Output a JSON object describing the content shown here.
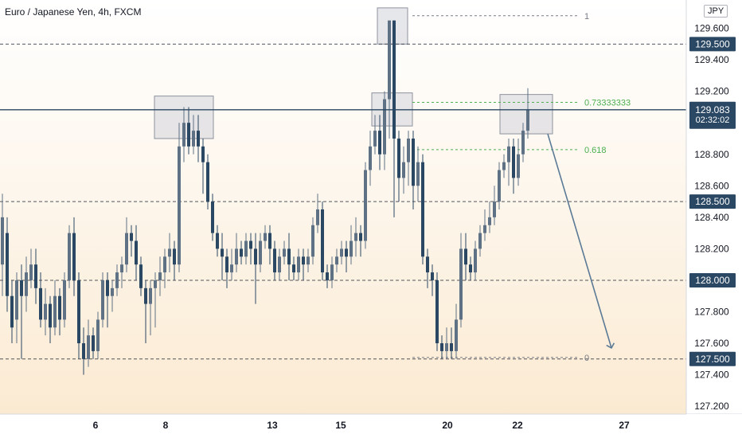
{
  "chart_data": {
    "type": "candlestick",
    "title": "Euro / Japanese Yen, 4h, FXCM",
    "currency": "JPY",
    "ylim": [
      127.15,
      129.78
    ],
    "xlim": [
      0,
      900
    ],
    "y_ticks": [
      127.2,
      127.4,
      127.6,
      127.8,
      128.2,
      128.4,
      128.6,
      128.8,
      129.2,
      129.4,
      129.6
    ],
    "x_ticks": [
      {
        "label": "6",
        "x": 120
      },
      {
        "label": "8",
        "x": 208
      },
      {
        "label": "13",
        "x": 342
      },
      {
        "label": "15",
        "x": 428
      },
      {
        "label": "20",
        "x": 562
      },
      {
        "label": "22",
        "x": 650
      },
      {
        "label": "27",
        "x": 784
      }
    ],
    "current_price": {
      "value": 129.083,
      "label": "129.083",
      "countdown": "02:32:02"
    },
    "horizontal_levels": [
      {
        "value": 129.5,
        "label": "129.500"
      },
      {
        "value": 128.5,
        "label": "128.500"
      },
      {
        "value": 128.0,
        "label": "128.000"
      },
      {
        "value": 127.5,
        "label": "127.500"
      }
    ],
    "fib_levels": [
      {
        "value": 129.68,
        "label": "1",
        "color": "#787b86"
      },
      {
        "value": 129.13,
        "label": "0.73333333",
        "color": "#4caf50"
      },
      {
        "value": 128.83,
        "label": "0.618",
        "color": "#4caf50"
      },
      {
        "value": 127.51,
        "label": "0",
        "color": "#787b86"
      }
    ],
    "fib_range_x": [
      518,
      728
    ],
    "highlight_boxes": [
      {
        "x": [
          194,
          268
        ],
        "y": [
          128.9,
          129.17
        ]
      },
      {
        "x": [
          474,
          512
        ],
        "y": [
          129.5,
          129.73
        ]
      },
      {
        "x": [
          467,
          518
        ],
        "y": [
          128.98,
          129.19
        ]
      },
      {
        "x": [
          628,
          694
        ],
        "y": [
          128.93,
          129.18
        ]
      }
    ],
    "projection_arrow": {
      "from": [
        688,
        128.93
      ],
      "to": [
        768,
        127.57
      ]
    },
    "candles": [
      [
        3,
        128.1,
        128.4,
        128.55,
        127.9
      ],
      [
        9,
        128.3,
        127.9,
        128.4,
        127.8
      ],
      [
        15,
        127.9,
        127.7,
        128.0,
        127.6
      ],
      [
        21,
        127.75,
        128.0,
        128.05,
        127.6
      ],
      [
        27,
        128.0,
        127.9,
        128.1,
        127.5
      ],
      [
        33,
        127.9,
        128.05,
        128.15,
        127.8
      ],
      [
        39,
        128.0,
        128.1,
        128.2,
        127.95
      ],
      [
        45,
        128.1,
        127.95,
        128.2,
        127.85
      ],
      [
        51,
        127.95,
        127.75,
        128.05,
        127.7
      ],
      [
        57,
        127.75,
        127.85,
        127.95,
        127.65
      ],
      [
        63,
        127.85,
        127.7,
        127.9,
        127.6
      ],
      [
        69,
        127.7,
        127.9,
        128.0,
        127.65
      ],
      [
        75,
        127.9,
        127.75,
        127.95,
        127.65
      ],
      [
        81,
        127.75,
        128.0,
        128.05,
        127.7
      ],
      [
        87,
        128.0,
        128.3,
        128.35,
        127.95
      ],
      [
        93,
        128.3,
        128.0,
        128.4,
        127.9
      ],
      [
        99,
        128.0,
        127.6,
        128.05,
        127.5
      ],
      [
        105,
        127.6,
        127.5,
        127.7,
        127.4
      ],
      [
        111,
        127.5,
        127.65,
        127.75,
        127.45
      ],
      [
        117,
        127.65,
        127.55,
        127.7,
        127.5
      ],
      [
        123,
        127.55,
        127.75,
        127.8,
        127.5
      ],
      [
        129,
        127.75,
        128.0,
        128.05,
        127.7
      ],
      [
        135,
        128.0,
        127.9,
        128.05,
        127.7
      ],
      [
        141,
        127.9,
        127.95,
        128.0,
        127.8
      ],
      [
        147,
        127.95,
        128.05,
        128.1,
        127.9
      ],
      [
        153,
        128.05,
        128.1,
        128.15,
        127.95
      ],
      [
        159,
        128.1,
        128.3,
        128.4,
        128.05
      ],
      [
        165,
        128.3,
        128.25,
        128.35,
        128.15
      ],
      [
        171,
        128.25,
        128.1,
        128.35,
        128.0
      ],
      [
        177,
        128.1,
        127.95,
        128.15,
        127.9
      ],
      [
        183,
        127.95,
        127.85,
        128.0,
        127.6
      ],
      [
        189,
        127.85,
        127.95,
        128.0,
        127.65
      ],
      [
        195,
        127.95,
        128.0,
        128.05,
        127.7
      ],
      [
        201,
        128.0,
        128.05,
        128.15,
        127.9
      ],
      [
        207,
        128.05,
        128.15,
        128.2,
        127.95
      ],
      [
        213,
        128.15,
        128.2,
        128.3,
        128.05
      ],
      [
        219,
        128.2,
        128.1,
        128.25,
        128.0
      ],
      [
        225,
        128.1,
        128.85,
        129.0,
        128.05
      ],
      [
        231,
        128.85,
        129.0,
        129.1,
        128.75
      ],
      [
        237,
        129.0,
        128.85,
        129.1,
        128.8
      ],
      [
        243,
        128.85,
        128.95,
        129.05,
        128.8
      ],
      [
        249,
        128.95,
        128.85,
        129.05,
        128.75
      ],
      [
        255,
        128.85,
        128.75,
        128.9,
        128.55
      ],
      [
        261,
        128.75,
        128.5,
        128.8,
        128.45
      ],
      [
        267,
        128.5,
        128.3,
        128.55,
        128.25
      ],
      [
        273,
        128.3,
        128.2,
        128.35,
        128.15
      ],
      [
        279,
        128.2,
        128.15,
        128.3,
        128.0
      ],
      [
        285,
        128.15,
        128.05,
        128.2,
        127.95
      ],
      [
        291,
        128.05,
        128.1,
        128.2,
        128.0
      ],
      [
        297,
        128.1,
        128.2,
        128.3,
        128.05
      ],
      [
        303,
        128.2,
        128.15,
        128.25,
        128.1
      ],
      [
        309,
        128.15,
        128.25,
        128.3,
        128.1
      ],
      [
        315,
        128.25,
        128.2,
        128.3,
        128.1
      ],
      [
        321,
        128.2,
        128.1,
        128.3,
        127.85
      ],
      [
        327,
        128.1,
        128.25,
        128.3,
        128.05
      ],
      [
        333,
        128.25,
        128.3,
        128.35,
        128.2
      ],
      [
        339,
        128.3,
        128.2,
        128.35,
        128.1
      ],
      [
        345,
        128.2,
        128.05,
        128.25,
        128.0
      ],
      [
        351,
        128.05,
        128.15,
        128.2,
        128.0
      ],
      [
        357,
        128.15,
        128.2,
        128.25,
        128.1
      ],
      [
        363,
        128.2,
        128.1,
        128.3,
        128.0
      ],
      [
        369,
        128.1,
        128.05,
        128.15,
        128.0
      ],
      [
        375,
        128.05,
        128.15,
        128.2,
        128.0
      ],
      [
        381,
        128.15,
        128.1,
        128.2,
        128.0
      ],
      [
        387,
        128.1,
        128.15,
        128.2,
        128.05
      ],
      [
        393,
        128.15,
        128.35,
        128.4,
        128.1
      ],
      [
        399,
        128.35,
        128.45,
        128.55,
        128.3
      ],
      [
        405,
        128.45,
        128.05,
        128.5,
        128.0
      ],
      [
        411,
        128.05,
        128.0,
        128.1,
        127.95
      ],
      [
        417,
        128.0,
        128.1,
        128.15,
        127.95
      ],
      [
        423,
        128.1,
        128.15,
        128.2,
        128.05
      ],
      [
        429,
        128.15,
        128.2,
        128.25,
        128.1
      ],
      [
        435,
        128.2,
        128.15,
        128.25,
        128.05
      ],
      [
        441,
        128.15,
        128.25,
        128.35,
        128.1
      ],
      [
        447,
        128.25,
        128.3,
        128.4,
        128.15
      ],
      [
        453,
        128.3,
        128.25,
        128.35,
        128.15
      ],
      [
        459,
        128.25,
        128.7,
        128.75,
        128.2
      ],
      [
        465,
        128.7,
        128.85,
        128.95,
        128.6
      ],
      [
        471,
        128.85,
        128.95,
        129.05,
        128.8
      ],
      [
        477,
        128.95,
        128.8,
        129.05,
        128.7
      ],
      [
        483,
        128.8,
        129.15,
        129.2,
        128.7
      ],
      [
        489,
        129.15,
        129.65,
        129.65,
        128.9
      ],
      [
        495,
        129.65,
        128.9,
        129.65,
        128.4
      ],
      [
        501,
        128.9,
        128.65,
        128.95,
        128.5
      ],
      [
        507,
        128.65,
        128.75,
        128.85,
        128.55
      ],
      [
        513,
        128.75,
        128.9,
        128.95,
        128.6
      ],
      [
        519,
        128.9,
        128.6,
        128.95,
        128.45
      ],
      [
        525,
        128.6,
        128.75,
        128.85,
        128.5
      ],
      [
        531,
        128.75,
        128.15,
        128.8,
        128.1
      ],
      [
        537,
        128.15,
        128.05,
        128.2,
        127.95
      ],
      [
        543,
        128.05,
        128.0,
        128.1,
        127.9
      ],
      [
        549,
        128.0,
        127.6,
        128.05,
        127.55
      ],
      [
        555,
        127.6,
        127.55,
        127.65,
        127.5
      ],
      [
        561,
        127.55,
        127.6,
        127.7,
        127.5
      ],
      [
        567,
        127.6,
        127.55,
        127.7,
        127.5
      ],
      [
        573,
        127.55,
        127.75,
        127.85,
        127.5
      ],
      [
        579,
        127.75,
        128.2,
        128.3,
        127.7
      ],
      [
        585,
        128.2,
        128.1,
        128.3,
        128.0
      ],
      [
        591,
        128.1,
        128.05,
        128.15,
        128.0
      ],
      [
        597,
        128.05,
        128.2,
        128.25,
        128.0
      ],
      [
        603,
        128.2,
        128.3,
        128.35,
        128.15
      ],
      [
        609,
        128.3,
        128.35,
        128.45,
        128.25
      ],
      [
        615,
        128.35,
        128.4,
        128.5,
        128.3
      ],
      [
        621,
        128.4,
        128.5,
        128.6,
        128.35
      ],
      [
        627,
        128.5,
        128.7,
        128.75,
        128.45
      ],
      [
        633,
        128.7,
        128.75,
        128.8,
        128.65
      ],
      [
        639,
        128.75,
        128.85,
        128.9,
        128.6
      ],
      [
        645,
        128.85,
        128.65,
        128.9,
        128.55
      ],
      [
        651,
        128.65,
        128.8,
        128.9,
        128.6
      ],
      [
        657,
        128.8,
        128.95,
        129.0,
        128.75
      ],
      [
        663,
        128.95,
        129.08,
        129.22,
        128.9
      ]
    ],
    "colors": {
      "up": "#5f7285",
      "down": "#2a4763",
      "last_price": "#2a4763",
      "arrow": "#5b7a96"
    }
  }
}
